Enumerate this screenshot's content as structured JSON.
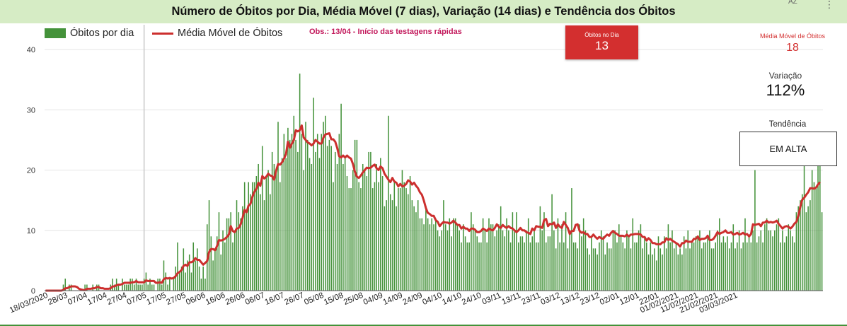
{
  "header": {
    "title": "Número de Óbitos por Dia, Média Móvel (7 dias), Variação (14 dias) e Tendência dos Óbitos",
    "sort_icon_label": "AZ",
    "more_icon": "vertical-ellipsis-icon"
  },
  "legend": {
    "bars_label": "Óbitos por dia",
    "line_label": "Média Móvel de Óbitos",
    "bars_color": "#44923a",
    "line_color": "#cc2f2e"
  },
  "note": "Obs.: 13/04 - Início das testagens rápidas",
  "kpis": {
    "deaths_today": {
      "label": "Óbitos no Dia",
      "value": "13",
      "color": "#d32f2f"
    },
    "moving_avg": {
      "label": "Média Móvel de Óbitos",
      "value": "18"
    },
    "variation": {
      "label": "Variação",
      "value": "112%"
    },
    "trend": {
      "label": "Tendência",
      "value": "EM ALTA"
    }
  },
  "chart_data": {
    "type": "bar",
    "start_date": "18/03/2020",
    "x_tick_labels": [
      "18/03/2020",
      "28/03",
      "07/04",
      "17/04",
      "27/04",
      "07/05",
      "17/05",
      "27/05",
      "06/06",
      "16/06",
      "26/06",
      "06/07",
      "16/07",
      "26/07",
      "05/08",
      "15/08",
      "25/08",
      "04/09",
      "14/09",
      "24/09",
      "04/10",
      "14/10",
      "24/10",
      "03/11",
      "13/11",
      "23/11",
      "03/12",
      "13/12",
      "23/12",
      "02/01",
      "12/01",
      "22/01",
      "01/02/2021",
      "11/02/2021",
      "21/02/2021",
      "03/03/2021"
    ],
    "y_ticks": [
      0,
      10,
      20,
      30,
      40
    ],
    "ylim": [
      0,
      40
    ],
    "reference_line_date": "07/05",
    "grid": true,
    "series": [
      {
        "name": "Óbitos por dia",
        "kind": "bar",
        "values": [
          0,
          0,
          0,
          0,
          0,
          0,
          0,
          0,
          0,
          1,
          2,
          0,
          1,
          1,
          0,
          0,
          0,
          0,
          0,
          0,
          1,
          1,
          0,
          0,
          1,
          0,
          1,
          1,
          0,
          0,
          0,
          0,
          0,
          1,
          2,
          1,
          2,
          1,
          0,
          2,
          1,
          1,
          1,
          2,
          2,
          1,
          2,
          1,
          1,
          1,
          2,
          3,
          1,
          2,
          1,
          1,
          0,
          2,
          2,
          1,
          5,
          3,
          1,
          2,
          0,
          2,
          4,
          8,
          3,
          4,
          7,
          3,
          5,
          6,
          3,
          8,
          5,
          7,
          4,
          2,
          4,
          2,
          11,
          15,
          9,
          5,
          7,
          9,
          13,
          6,
          10,
          8,
          12,
          12,
          13,
          8,
          10,
          15,
          13,
          12,
          14,
          18,
          13,
          18,
          16,
          18,
          18,
          19,
          21,
          16,
          24,
          15,
          19,
          20,
          16,
          23,
          21,
          20,
          28,
          18,
          22,
          26,
          22,
          27,
          25,
          26,
          29,
          25,
          23,
          36,
          26,
          20,
          28,
          25,
          22,
          21,
          32,
          23,
          26,
          22,
          26,
          28,
          29,
          24,
          25,
          24,
          18,
          23,
          21,
          26,
          31,
          21,
          22,
          19,
          17,
          17,
          20,
          25,
          25,
          18,
          17,
          21,
          20,
          19,
          23,
          23,
          17,
          18,
          21,
          18,
          22,
          19,
          14,
          15,
          29,
          16,
          15,
          18,
          14,
          17,
          17,
          20,
          18,
          17,
          16,
          19,
          15,
          14,
          13,
          15,
          12,
          12,
          11,
          14,
          12,
          11,
          12,
          11,
          12,
          10,
          9,
          10,
          15,
          11,
          10,
          12,
          9,
          12,
          12,
          11,
          10,
          8,
          11,
          9,
          8,
          8,
          13,
          11,
          10,
          9,
          8,
          8,
          12,
          10,
          8,
          12,
          11,
          11,
          9,
          10,
          11,
          14,
          10,
          9,
          12,
          10,
          8,
          13,
          10,
          13,
          8,
          9,
          9,
          8,
          10,
          12,
          8,
          9,
          10,
          8,
          8,
          14,
          10,
          13,
          8,
          9,
          9,
          16,
          10,
          7,
          12,
          8,
          11,
          8,
          13,
          7,
          10,
          17,
          8,
          8,
          7,
          11,
          9,
          12,
          10,
          7,
          6,
          9,
          7,
          7,
          6,
          8,
          10,
          9,
          6,
          8,
          7,
          7,
          10,
          10,
          8,
          11,
          9,
          8,
          7,
          10,
          9,
          7,
          12,
          8,
          8,
          10,
          11,
          7,
          9,
          8,
          6,
          8,
          6,
          7,
          5,
          9,
          7,
          6,
          9,
          7,
          11,
          8,
          10,
          7,
          8,
          6,
          7,
          6,
          9,
          7,
          10,
          7,
          8,
          8,
          9,
          9,
          10,
          7,
          8,
          8,
          9,
          10,
          7,
          7,
          8,
          10,
          12,
          8,
          9,
          8,
          9,
          7,
          8,
          11,
          7,
          8,
          10,
          7,
          8,
          12,
          8,
          9,
          8,
          10,
          20,
          8,
          9,
          10,
          8,
          11,
          12,
          10,
          10,
          9,
          10,
          11,
          12,
          8,
          10,
          8,
          9,
          11,
          10,
          9,
          8,
          13,
          14,
          15,
          16,
          21,
          13,
          14,
          15,
          20,
          18,
          17,
          21,
          21,
          13
        ]
      },
      {
        "name": "Média Móvel de Óbitos",
        "kind": "line",
        "values": [
          0,
          0,
          0,
          0,
          0,
          0,
          0,
          0,
          0,
          0.1,
          0.4,
          0.4,
          0.6,
          0.7,
          0.7,
          0.7,
          0.6,
          0.3,
          0.2,
          0.1,
          0.1,
          0.3,
          0.3,
          0.3,
          0.4,
          0.4,
          0.6,
          0.6,
          0.4,
          0.4,
          0.3,
          0.3,
          0.3,
          0.4,
          0.7,
          0.7,
          0.9,
          1,
          1,
          1.1,
          1.3,
          1.3,
          1.3,
          1.3,
          1.4,
          1.4,
          1.6,
          1.4,
          1.4,
          1.4,
          1.4,
          1.7,
          1.6,
          1.6,
          1.6,
          1.6,
          1.3,
          1.3,
          1.4,
          1.3,
          1.9,
          2.1,
          2,
          2.1,
          2,
          2.1,
          2.4,
          2.9,
          3.1,
          3.4,
          4.1,
          4.3,
          4.1,
          4.7,
          4.7,
          4.9,
          5.4,
          5.1,
          5.1,
          4.7,
          4.3,
          4.6,
          4.9,
          6.4,
          6.9,
          6.9,
          6.7,
          7.4,
          8.4,
          8.3,
          8.4,
          8.6,
          8.9,
          9.3,
          10.7,
          9.9,
          9.7,
          10.3,
          10.4,
          11,
          12.1,
          13.4,
          13,
          14.1,
          14.4,
          15.6,
          16.4,
          16.9,
          17.9,
          17.4,
          19,
          18.6,
          18.9,
          19.4,
          19.1,
          19,
          18.4,
          19.9,
          21,
          20.9,
          21.3,
          21.9,
          22.6,
          24.7,
          23.7,
          24.4,
          25,
          26.6,
          26.4,
          26.6,
          27.4,
          25.4,
          25,
          24.6,
          24.4,
          24.1,
          24.4,
          25,
          24.7,
          24.4,
          24.4,
          25.4,
          25.9,
          26,
          26.1,
          25.1,
          25.1,
          24.7,
          23.7,
          22.3,
          22.1,
          22.4,
          22.1,
          22.4,
          22.1,
          21.9,
          21,
          19.7,
          18.9,
          18.7,
          19.1,
          19.6,
          20,
          20.4,
          20.3,
          20.4,
          20.7,
          20.9,
          20.3,
          20,
          20.6,
          20.3,
          19.4,
          18.9,
          18.4,
          18,
          18.7,
          18.1,
          17.9,
          17.3,
          17.7,
          17.3,
          17.4,
          17.7,
          18.3,
          18.1,
          17.6,
          17.9,
          17.4,
          17,
          16.3,
          15.9,
          14.9,
          13.7,
          12.9,
          12.7,
          12.4,
          12.4,
          11.7,
          11.4,
          10.7,
          11.1,
          11.4,
          11.3,
          11.3,
          11.1,
          11.3,
          11.6,
          11.3,
          10.9,
          10.9,
          10.3,
          10.6,
          10.3,
          10.3,
          9.9,
          10.3,
          10.3,
          10.1,
          9.7,
          9.7,
          9.9,
          10.3,
          10.1,
          9.9,
          10.3,
          10.1,
          10,
          10.4,
          11,
          10.6,
          10.4,
          10.9,
          10.6,
          10.4,
          10.7,
          10.4,
          10.3,
          10,
          9.7,
          10,
          10.4,
          10,
          10,
          9.7,
          9.6,
          9.4,
          10.3,
          10,
          10.7,
          10.6,
          10.6,
          10.4,
          11.7,
          11.9,
          10.7,
          11.1,
          11,
          11.3,
          10.4,
          11,
          10.6,
          10.4,
          11.4,
          10.9,
          10.4,
          9.4,
          9.9,
          9.9,
          10.9,
          11,
          9.9,
          9.6,
          9.7,
          9.4,
          9.4,
          8.9,
          8.9,
          9.3,
          8.9,
          8.6,
          8.9,
          8.7,
          8.6,
          9,
          9.3,
          9.1,
          9.6,
          9.9,
          9.6,
          9.4,
          9.1,
          9.1,
          9.1,
          9,
          9.3,
          9,
          9.3,
          9.3,
          9.4,
          9.4,
          9.4,
          9.3,
          8.9,
          8.9,
          8.3,
          8.7,
          8.4,
          7.9,
          7.9,
          7.7,
          7.7,
          7.7,
          8,
          8,
          8.7,
          8.4,
          8.6,
          8.3,
          8.1,
          7.9,
          7.7,
          7.3,
          7.9,
          7.9,
          8.3,
          8.1,
          8.1,
          8.1,
          8.6,
          8.6,
          9,
          8.4,
          8.6,
          8.6,
          8.7,
          9.1,
          8.4,
          8.4,
          8.6,
          9.1,
          9.7,
          9.4,
          9.6,
          9.7,
          10,
          9.6,
          9.6,
          9.7,
          9.3,
          9.4,
          9.6,
          9.3,
          9.4,
          9.6,
          9.3,
          9.4,
          9,
          9.4,
          11,
          10.9,
          11,
          11.1,
          10.7,
          11.3,
          11.3,
          11.6,
          11.3,
          11.4,
          11.3,
          11.4,
          11.6,
          11.1,
          10.7,
          10.3,
          10.6,
          10.7,
          10.6,
          10.3,
          10.6,
          11.1,
          11.4,
          12.4,
          13.9,
          15.1,
          15.4,
          15.9,
          16.3,
          17,
          17,
          16.9,
          17.1,
          17.6,
          18
        ]
      }
    ]
  }
}
